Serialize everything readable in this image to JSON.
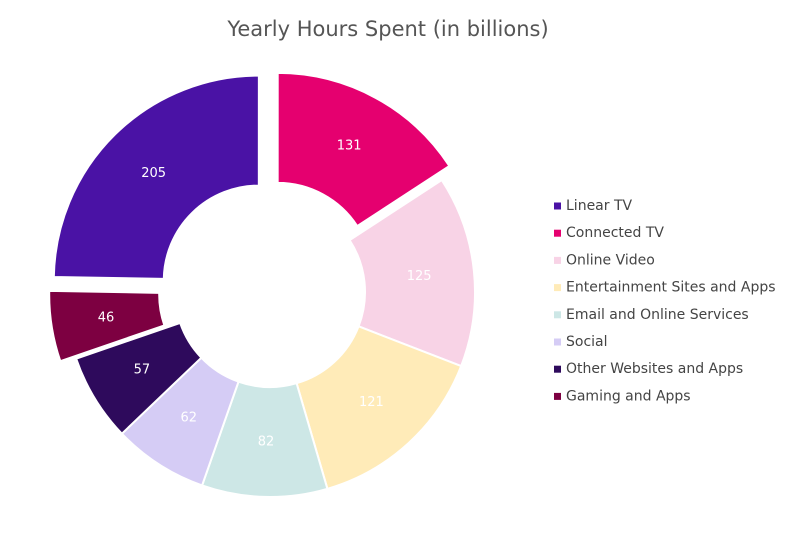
{
  "chart_data": {
    "type": "donut",
    "title": "Yearly Hours Spent (in billions)",
    "categories": [
      "Linear TV",
      "Connected TV",
      "Online Video",
      "Entertainment Sites and Apps",
      "Email and Online Services",
      "Social",
      "Other Websites and Apps",
      "Gaming and Apps"
    ],
    "values": [
      205,
      131,
      125,
      121,
      82,
      62,
      57,
      46
    ],
    "colors": [
      "#4a12a5",
      "#e5006f",
      "#f8d3e6",
      "#ffebb8",
      "#cde7e6",
      "#d5ccf5",
      "#2e0a5c",
      "#7d0041"
    ],
    "explode": [
      true,
      true,
      false,
      false,
      false,
      false,
      false,
      true
    ],
    "legend": "right"
  }
}
